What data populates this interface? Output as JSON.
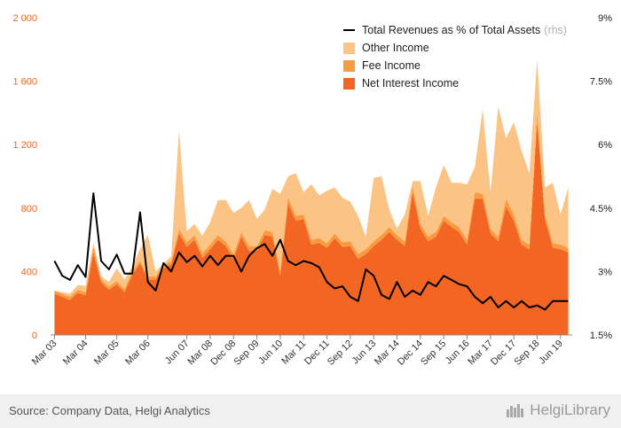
{
  "chart_data": {
    "type": "area",
    "title": "",
    "x": [
      "Mar 03",
      "Jun 03",
      "Sep 03",
      "Dec 03",
      "Mar 04",
      "Jun 04",
      "Sep 04",
      "Dec 04",
      "Mar 05",
      "Jun 05",
      "Sep 05",
      "Dec 05",
      "Mar 06",
      "Jun 06",
      "Sep 06",
      "Dec 06",
      "Mar 07",
      "Jun 07",
      "Sep 07",
      "Dec 07",
      "Mar 08",
      "Jun 08",
      "Sep 08",
      "Dec 08",
      "Mar 09",
      "Jun 09",
      "Sep 09",
      "Dec 09",
      "Mar 10",
      "Jun 10",
      "Sep 10",
      "Dec 10",
      "Mar 11",
      "Jun 11",
      "Sep 11",
      "Dec 11",
      "Mar 12",
      "Jun 12",
      "Sep 12",
      "Dec 12",
      "Mar 13",
      "Jun 13",
      "Sep 13",
      "Dec 13",
      "Mar 14",
      "Jun 14",
      "Sep 14",
      "Dec 14",
      "Mar 15",
      "Jun 15",
      "Sep 15",
      "Dec 15",
      "Mar 16",
      "Jun 16",
      "Sep 16",
      "Dec 16",
      "Mar 17",
      "Jun 17",
      "Sep 17",
      "Dec 17",
      "Mar 18",
      "Jun 18",
      "Sep 18",
      "Dec 18",
      "Mar 19",
      "Jun 19",
      "Sep 19"
    ],
    "x_tick_labels": [
      "Mar 03",
      "Mar 04",
      "Mar 05",
      "Mar 06",
      "Jun 07",
      "Mar 08",
      "Dec 08",
      "Sep 09",
      "Jun 10",
      "Mar 11",
      "Dec 11",
      "Sep 12",
      "Jun 13",
      "Mar 14",
      "Dec 14",
      "Sep 15",
      "Jun 16",
      "Mar 17",
      "Dec 17",
      "Sep 18",
      "Jun 19"
    ],
    "x_tick_indices": [
      0,
      4,
      8,
      12,
      17,
      20,
      23,
      26,
      29,
      32,
      35,
      38,
      41,
      44,
      47,
      50,
      53,
      56,
      59,
      62,
      65
    ],
    "series": [
      {
        "name": "Net Interest Income",
        "color": "#f26522",
        "values": [
          260,
          240,
          220,
          265,
          250,
          520,
          330,
          285,
          320,
          270,
          380,
          450,
          350,
          350,
          420,
          445,
          640,
          555,
          600,
          485,
          540,
          600,
          560,
          480,
          620,
          530,
          530,
          630,
          620,
          370,
          830,
          720,
          730,
          570,
          580,
          550,
          610,
          555,
          560,
          480,
          510,
          560,
          600,
          650,
          600,
          560,
          900,
          670,
          590,
          620,
          720,
          680,
          650,
          570,
          860,
          860,
          640,
          590,
          810,
          720,
          570,
          540,
          1350,
          730,
          550,
          540,
          520
        ]
      },
      {
        "name": "Fee Income",
        "color": "#f89c3f",
        "values": [
          20,
          20,
          20,
          20,
          20,
          40,
          20,
          20,
          20,
          20,
          20,
          20,
          20,
          20,
          20,
          20,
          30,
          30,
          30,
          30,
          30,
          30,
          30,
          30,
          30,
          30,
          30,
          30,
          30,
          30,
          40,
          30,
          30,
          30,
          30,
          30,
          30,
          30,
          30,
          30,
          30,
          30,
          30,
          30,
          30,
          30,
          40,
          30,
          30,
          30,
          30,
          30,
          30,
          30,
          40,
          30,
          30,
          30,
          50,
          40,
          30,
          30,
          60,
          30,
          30,
          30,
          30
        ]
      },
      {
        "name": "Other Income",
        "color": "#fbc485",
        "values": [
          0,
          10,
          20,
          30,
          40,
          20,
          20,
          30,
          80,
          60,
          30,
          70,
          260,
          30,
          10,
          30,
          620,
          70,
          70,
          110,
          140,
          220,
          260,
          260,
          150,
          290,
          170,
          130,
          270,
          490,
          130,
          270,
          140,
          350,
          270,
          330,
          290,
          280,
          250,
          240,
          80,
          400,
          370,
          110,
          40,
          170,
          30,
          270,
          130,
          280,
          320,
          250,
          280,
          350,
          160,
          530,
          230,
          820,
          380,
          580,
          560,
          450,
          330,
          170,
          380,
          190,
          380
        ]
      },
      {
        "name": "Total Revenues as % of Total Assets",
        "axis": "rhs",
        "color": "#000000",
        "values": [
          3.25,
          2.9,
          2.8,
          3.15,
          2.87,
          4.85,
          3.25,
          3.05,
          3.4,
          2.95,
          2.95,
          4.4,
          2.75,
          2.55,
          3.2,
          3.0,
          3.45,
          3.22,
          3.37,
          3.12,
          3.37,
          3.15,
          3.37,
          3.37,
          3.0,
          3.37,
          3.55,
          3.65,
          3.37,
          3.75,
          3.25,
          3.15,
          3.25,
          3.2,
          3.1,
          2.75,
          2.6,
          2.65,
          2.4,
          2.3,
          3.05,
          2.9,
          2.45,
          2.35,
          2.75,
          2.4,
          2.55,
          2.45,
          2.75,
          2.65,
          2.9,
          2.8,
          2.7,
          2.65,
          2.4,
          2.25,
          2.4,
          2.15,
          2.3,
          2.15,
          2.3,
          2.15,
          2.2,
          2.1,
          2.3,
          2.3,
          2.3
        ]
      }
    ],
    "y_left": {
      "ticks": [
        "0",
        "400",
        "800",
        "1 200",
        "1 600",
        "2 000"
      ],
      "values": [
        0,
        400,
        800,
        1200,
        1600,
        2000
      ],
      "ylim": [
        0,
        2000
      ]
    },
    "y_right": {
      "ticks": [
        "1.5%",
        "3%",
        "4.5%",
        "6%",
        "7.5%",
        "9%"
      ],
      "values": [
        1.5,
        3,
        4.5,
        6,
        7.5,
        9
      ],
      "ylim": [
        1.5,
        9
      ]
    },
    "grid": false,
    "legend_position": "top-right"
  },
  "legend": {
    "items": [
      {
        "label": "Total Revenues as % of Total Assets",
        "suffix": "(rhs)"
      },
      {
        "label": "Other Income"
      },
      {
        "label": "Fee Income"
      },
      {
        "label": "Net Interest Income"
      }
    ]
  },
  "footer": {
    "source": "Source: Company Data, Helgi Analytics",
    "brand": "HelgiLibrary"
  }
}
